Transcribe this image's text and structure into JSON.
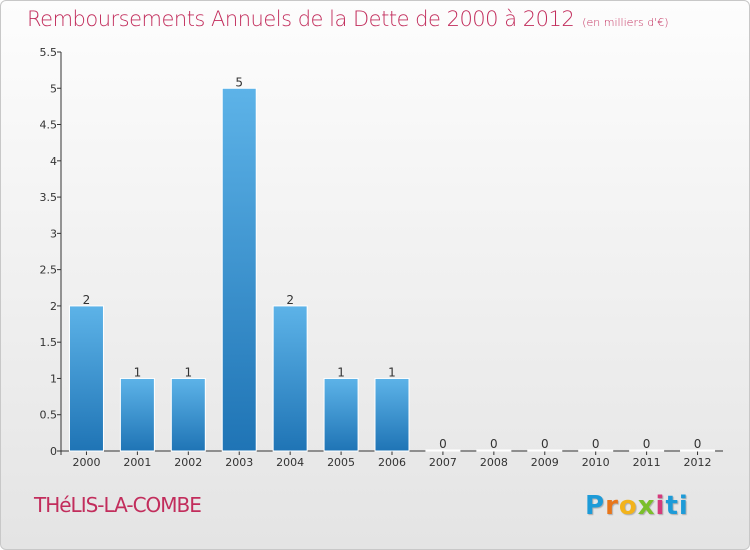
{
  "title": "Remboursements Annuels de la Dette de 2000 à 2012",
  "unit_note": "(en milliers d'€)",
  "commune": "THéLIS-LA-COMBE",
  "logo": {
    "letters": [
      "P",
      "r",
      "o",
      "x",
      "i",
      "ti"
    ]
  },
  "colors": {
    "accent": "#c22d5c",
    "bar_top": "#5db3e8",
    "bar_bottom": "#1f74b5",
    "axis": "#333333"
  },
  "chart_data": {
    "type": "bar",
    "title": "Remboursements Annuels de la Dette de 2000 à 2012",
    "categories": [
      "2000",
      "2001",
      "2002",
      "2003",
      "2004",
      "2005",
      "2006",
      "2007",
      "2008",
      "2009",
      "2010",
      "2011",
      "2012"
    ],
    "values": [
      2,
      1,
      1,
      5,
      2,
      1,
      1,
      0,
      0,
      0,
      0,
      0,
      0
    ],
    "value_labels": [
      "2",
      "1",
      "1",
      "5",
      "2",
      "1",
      "1",
      "0",
      "0",
      "0",
      "0",
      "0",
      "0"
    ],
    "y_ticks": [
      "0",
      "0.5",
      "1",
      "1.5",
      "2",
      "2.5",
      "3",
      "3.5",
      "4",
      "4.5",
      "5",
      "5.5"
    ],
    "ylim": [
      0,
      5.5
    ],
    "grid": false,
    "legend": "none"
  }
}
